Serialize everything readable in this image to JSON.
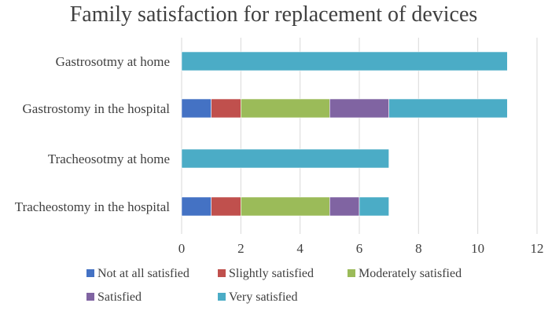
{
  "chart_data": {
    "type": "bar",
    "orientation": "horizontal",
    "stacked": true,
    "title": "Family satisfaction for replacement of devices",
    "xlabel": "",
    "ylabel": "",
    "xlim": [
      0,
      12
    ],
    "xticks": [
      0,
      2,
      4,
      6,
      8,
      10,
      12
    ],
    "categories": [
      "Gastrosotmy at home",
      "Gastrostomy in the hospital",
      "Tracheosotmy at home",
      "Tracheostomy in the hospital"
    ],
    "series": [
      {
        "name": "Not at all satisfied",
        "color": "#4472c4",
        "values": [
          0,
          1,
          0,
          1
        ]
      },
      {
        "name": "Slightly satisfied",
        "color": "#c0504d",
        "values": [
          0,
          1,
          0,
          1
        ]
      },
      {
        "name": "Moderately satisfied",
        "color": "#9bbb59",
        "values": [
          0,
          3,
          0,
          3
        ]
      },
      {
        "name": "Satisfied",
        "color": "#8064a2",
        "values": [
          0,
          2,
          0,
          1
        ]
      },
      {
        "name": "Very satisfied",
        "color": "#4bacc6",
        "values": [
          11,
          4,
          7,
          1
        ]
      }
    ],
    "legend_position": "bottom",
    "grid": true
  }
}
